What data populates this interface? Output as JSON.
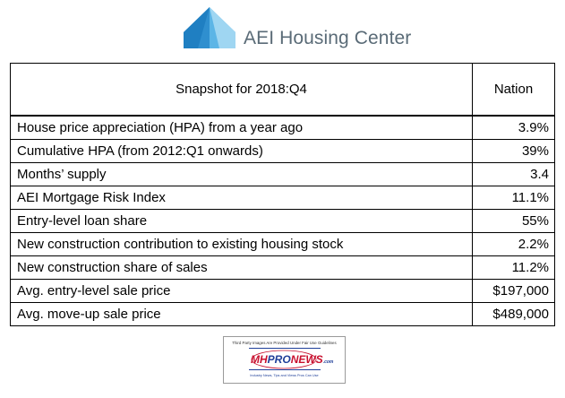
{
  "header": {
    "brand": "AEI Housing Center"
  },
  "table": {
    "title": "Snapshot for 2018:Q4",
    "value_header": "Nation",
    "rows": [
      {
        "label": "House price appreciation (HPA) from a year ago",
        "value": "3.9%"
      },
      {
        "label": "Cumulative HPA (from 2012:Q1 onwards)",
        "value": "39%"
      },
      {
        "label": "Months’ supply",
        "value": "3.4"
      },
      {
        "label": "AEI Mortgage Risk Index",
        "value": "11.1%"
      },
      {
        "label": "Entry-level loan share",
        "value": "55%"
      },
      {
        "label": "New construction contribution to existing housing stock",
        "value": "2.2%"
      },
      {
        "label": "New construction share of sales",
        "value": "11.2%"
      },
      {
        "label": "Avg. entry-level sale price",
        "value": "$197,000"
      },
      {
        "label": "Avg. move-up sale price",
        "value": "$489,000"
      }
    ]
  },
  "watermark": {
    "top_line": "Third Party Images Are Provided Under Fair Use Guidelines",
    "logo_mh": "MH",
    "logo_pro": "PRO",
    "logo_news": "NEWS",
    "logo_com": ".com",
    "tagline": "Industry News, Tips and Views Pros Can Use"
  },
  "colors": {
    "logo_dark": "#2f8fcf",
    "logo_mid": "#5cb5e6",
    "logo_light": "#9fd6f2",
    "brand_text": "#5a6b77",
    "watermark_red": "#c8102e",
    "watermark_blue": "#1f3f99"
  }
}
